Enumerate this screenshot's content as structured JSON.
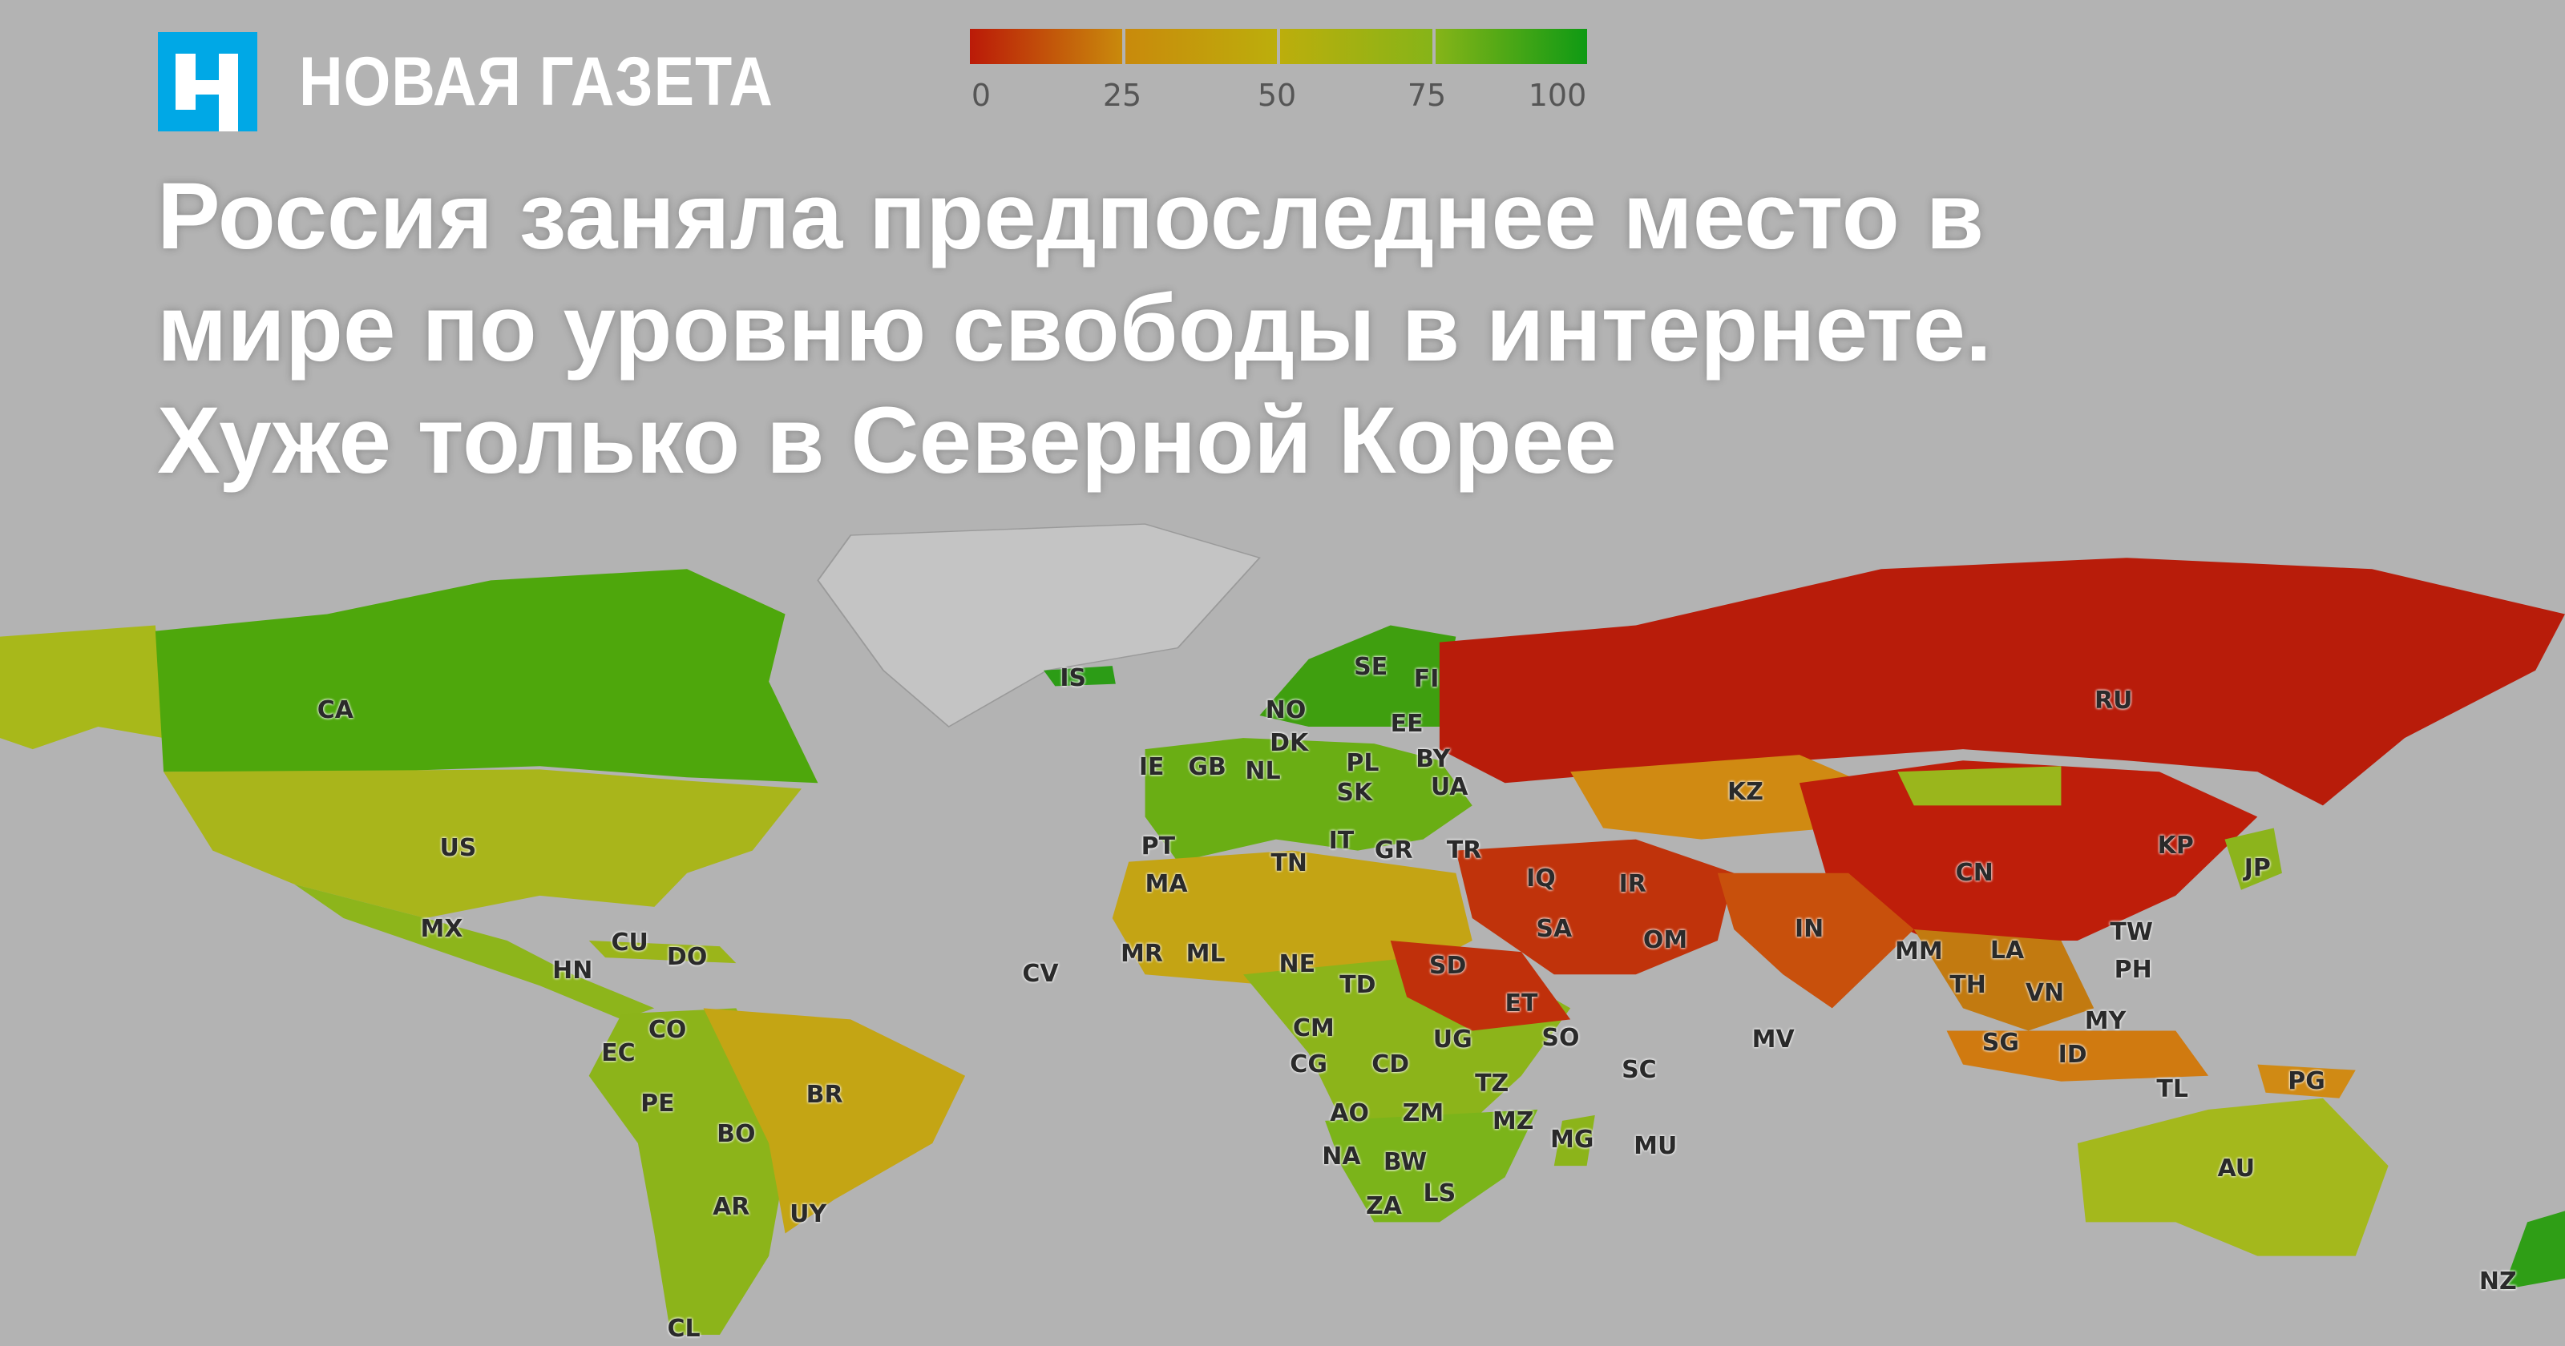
{
  "brand": {
    "name": "НОВАЯ ГАЗЕТА",
    "logo_color": "#00a8e6"
  },
  "headline": [
    "Россия заняла предпоследнее место в",
    "мире по уровню свободы в интернете.",
    "Хуже только в Северной Корее"
  ],
  "legend": {
    "ticks": [
      "0",
      "25",
      "50",
      "75",
      "100"
    ],
    "colors": [
      "#bb1a08",
      "#c98a0c",
      "#bcae0c",
      "#86b418",
      "#0f9a14"
    ]
  },
  "map": {
    "type": "choropleth",
    "background": "#b3b3b3",
    "country_labels": [
      "CA",
      "US",
      "MX",
      "CU",
      "DO",
      "HN",
      "CO",
      "EC",
      "PE",
      "BR",
      "BO",
      "AR",
      "UY",
      "CL",
      "IS",
      "NO",
      "SE",
      "FI",
      "EE",
      "DK",
      "GB",
      "IE",
      "NL",
      "PL",
      "BY",
      "UA",
      "SK",
      "PT",
      "IT",
      "GR",
      "TR",
      "TN",
      "MA",
      "MR",
      "ML",
      "NE",
      "TD",
      "SD",
      "CM",
      "CG",
      "CD",
      "UG",
      "ET",
      "SO",
      "TZ",
      "AO",
      "ZM",
      "MZ",
      "MG",
      "MU",
      "NA",
      "BW",
      "ZA",
      "LS",
      "IQ",
      "IR",
      "SA",
      "OM",
      "KZ",
      "RU",
      "CN",
      "IN",
      "KP",
      "JP",
      "TW",
      "PH",
      "MM",
      "LA",
      "TH",
      "VN",
      "MY",
      "SG",
      "ID",
      "MV",
      "SC",
      "TL",
      "PG",
      "AU",
      "NZ",
      "CV"
    ]
  }
}
